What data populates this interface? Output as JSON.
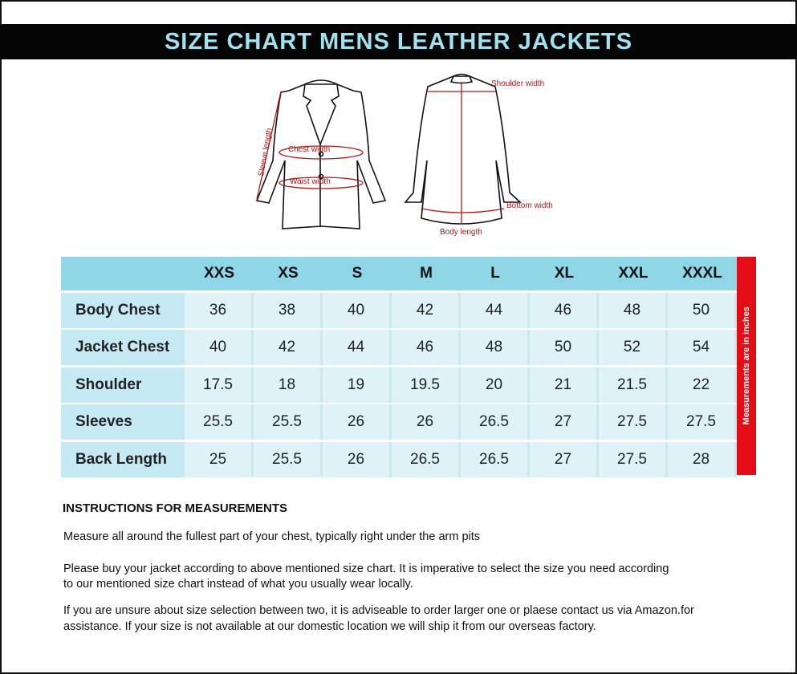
{
  "title": "SIZE CHART MENS LEATHER JACKETS",
  "diagram": {
    "labels": {
      "sleeve_length": "Sleeve length",
      "chest_width": "Chest width",
      "waist_width": "Waist width",
      "shoulder_width": "Shoulder width",
      "bottom_width": "Bottom width",
      "body_length": "Body length"
    },
    "accent_color": "#b01818"
  },
  "table": {
    "sizes": [
      "XXS",
      "XS",
      "S",
      "M",
      "L",
      "XL",
      "XXL",
      "XXXL"
    ],
    "rows": [
      {
        "label": "Body Chest",
        "values": [
          "36",
          "38",
          "40",
          "42",
          "44",
          "46",
          "48",
          "50"
        ]
      },
      {
        "label": "Jacket Chest",
        "values": [
          "40",
          "42",
          "44",
          "46",
          "48",
          "50",
          "52",
          "54"
        ]
      },
      {
        "label": "Shoulder",
        "values": [
          "17.5",
          "18",
          "19",
          "19.5",
          "20",
          "21",
          "21.5",
          "22"
        ]
      },
      {
        "label": "Sleeves",
        "values": [
          "25.5",
          "25.5",
          "26",
          "26",
          "26.5",
          "27",
          "27.5",
          "27.5"
        ]
      },
      {
        "label": "Back Length",
        "values": [
          "25",
          "25.5",
          "26",
          "26.5",
          "26.5",
          "27",
          "27.5",
          "28"
        ]
      }
    ],
    "side_note": "Measurements  are in inches",
    "header_color": "#8fd6e6",
    "side_note_color": "#e40d16"
  },
  "instructions": {
    "heading": "INSTRUCTIONS FOR MEASUREMENTS",
    "paragraphs": [
      [
        "Measure all around the fullest part of your chest, typically right under the arm pits"
      ],
      [
        "Please buy your jacket according to above mentioned size chart. It is imperative to select the size you need according",
        "to our mentioned size chart instead of what you  usually wear locally."
      ],
      [
        "If you are unsure about size selection between two, it is adviseable to order larger one or plaese contact us via Amazon.for",
        "assistance. If your size is not available at our domestic location we will ship it from our overseas factory."
      ]
    ]
  }
}
